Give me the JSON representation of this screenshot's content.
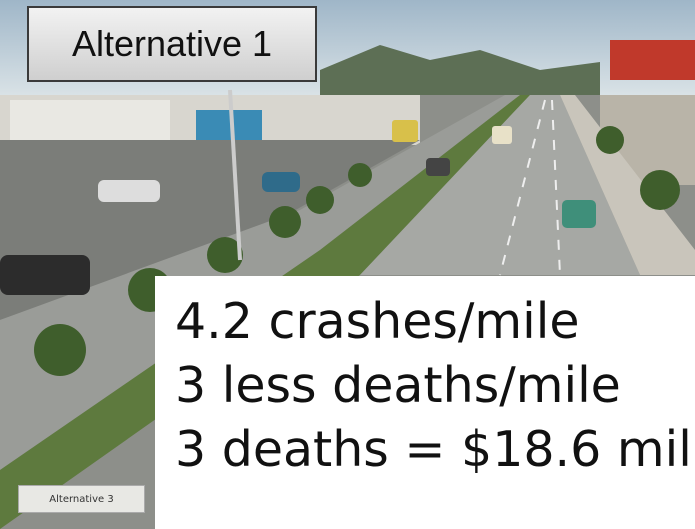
{
  "title_box": {
    "label": "Alternative 1"
  },
  "photo": {
    "caption": "Alternative 3"
  },
  "stats_box": {
    "lines": [
      "4.2 crashes/mile",
      "3 less deaths/mile",
      "3 deaths = $18.6 mil"
    ]
  }
}
